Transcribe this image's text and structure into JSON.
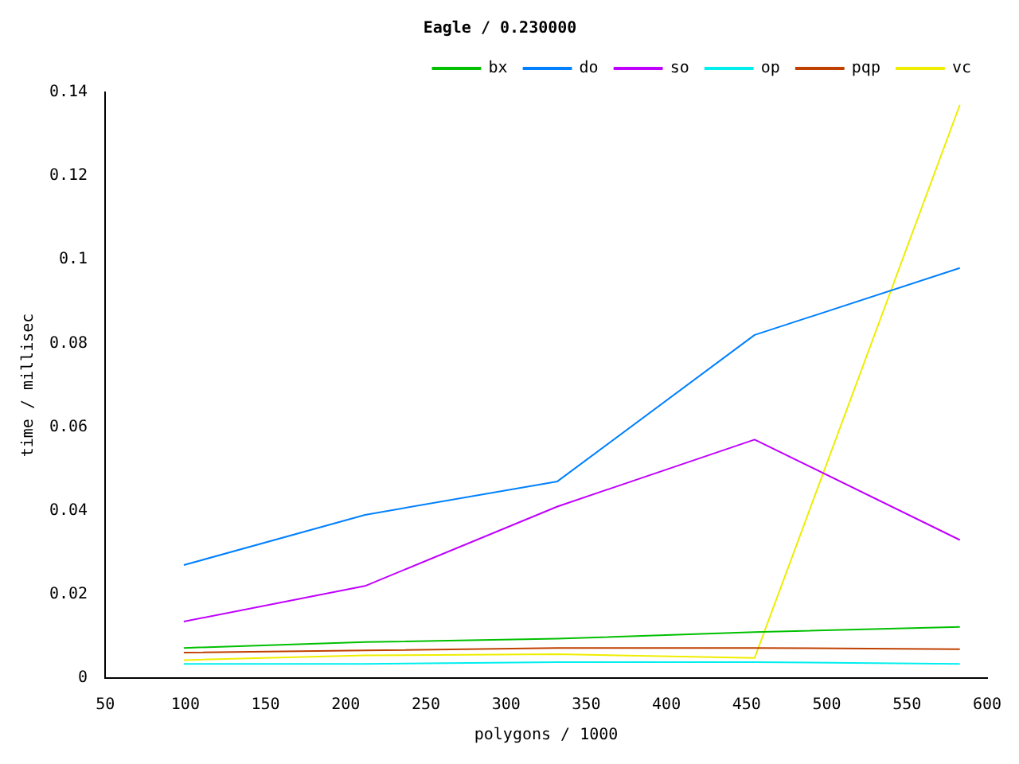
{
  "chart_data": {
    "type": "line",
    "title": "Eagle / 0.230000",
    "xlabel": "polygons / 1000",
    "ylabel": "time / millisec",
    "x": [
      99,
      212,
      332,
      455,
      583
    ],
    "series": [
      {
        "name": "bx",
        "color": "#00c000",
        "values": [
          0.0072,
          0.0086,
          0.0094,
          0.011,
          0.0122
        ]
      },
      {
        "name": "do",
        "color": "#0080ff",
        "values": [
          0.027,
          0.039,
          0.047,
          0.082,
          0.098
        ]
      },
      {
        "name": "so",
        "color": "#c000ff",
        "values": [
          0.0135,
          0.022,
          0.041,
          0.057,
          0.033
        ]
      },
      {
        "name": "op",
        "color": "#00eeee",
        "values": [
          0.0034,
          0.0034,
          0.0038,
          0.0038,
          0.0034
        ]
      },
      {
        "name": "pqp",
        "color": "#c04000",
        "values": [
          0.0061,
          0.0066,
          0.0072,
          0.0072,
          0.0069
        ]
      },
      {
        "name": "vc",
        "color": "#eeee00",
        "values": [
          0.0043,
          0.0054,
          0.0057,
          0.0048,
          0.137
        ]
      }
    ],
    "xlim": [
      50,
      600
    ],
    "xticks": [
      50,
      100,
      150,
      200,
      250,
      300,
      350,
      400,
      450,
      500,
      550,
      600
    ],
    "ylim": [
      0,
      0.14
    ],
    "yticks": [
      0,
      0.02,
      0.04,
      0.06,
      0.08,
      0.1,
      0.12,
      0.14
    ],
    "grid": false,
    "legend": "top right",
    "marker": "none",
    "line_style": "solid"
  }
}
